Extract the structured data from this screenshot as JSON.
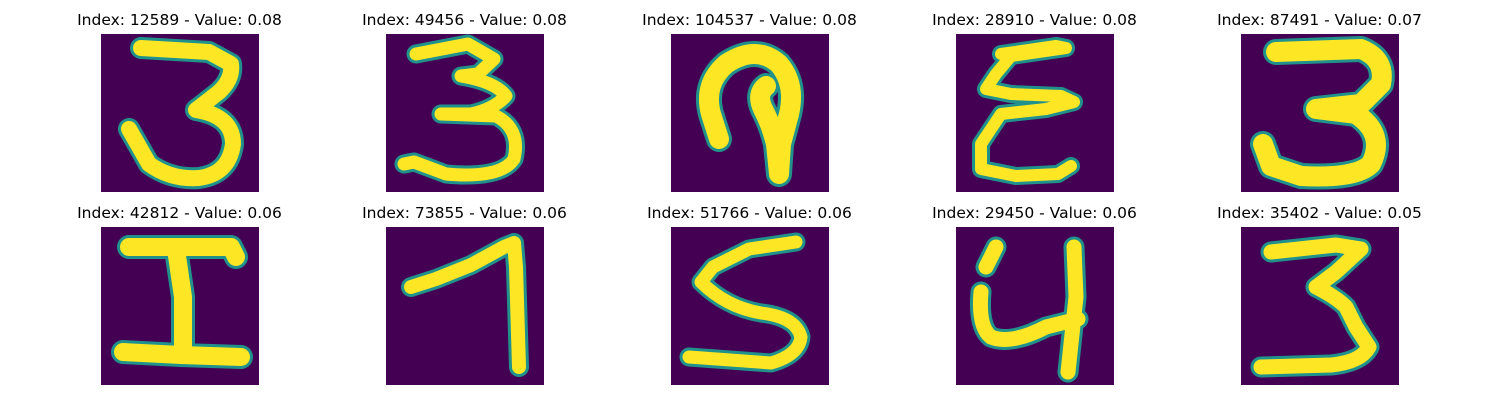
{
  "colors": {
    "background": "#ffffff",
    "image_background": "#440154",
    "stroke_core": "#fde725",
    "stroke_edge": "#21918c"
  },
  "grid": {
    "rows": 2,
    "cols": 5
  },
  "panels": [
    {
      "title": "Index: 12589 - Value: 0.08",
      "glyph": "3"
    },
    {
      "title": "Index: 49456 - Value: 0.08",
      "glyph": "3"
    },
    {
      "title": "Index: 104537 - Value: 0.08",
      "glyph": "hook"
    },
    {
      "title": "Index: 28910 - Value: 0.08",
      "glyph": "E"
    },
    {
      "title": "Index: 87491 - Value: 0.07",
      "glyph": "3"
    },
    {
      "title": "Index: 42812 - Value: 0.06",
      "glyph": "I"
    },
    {
      "title": "Index: 73855 - Value: 0.06",
      "glyph": "7"
    },
    {
      "title": "Index: 51766 - Value: 0.06",
      "glyph": "5"
    },
    {
      "title": "Index: 29450 - Value: 0.06",
      "glyph": "4"
    },
    {
      "title": "Index: 35402 - Value: 0.05",
      "glyph": "3"
    }
  ]
}
